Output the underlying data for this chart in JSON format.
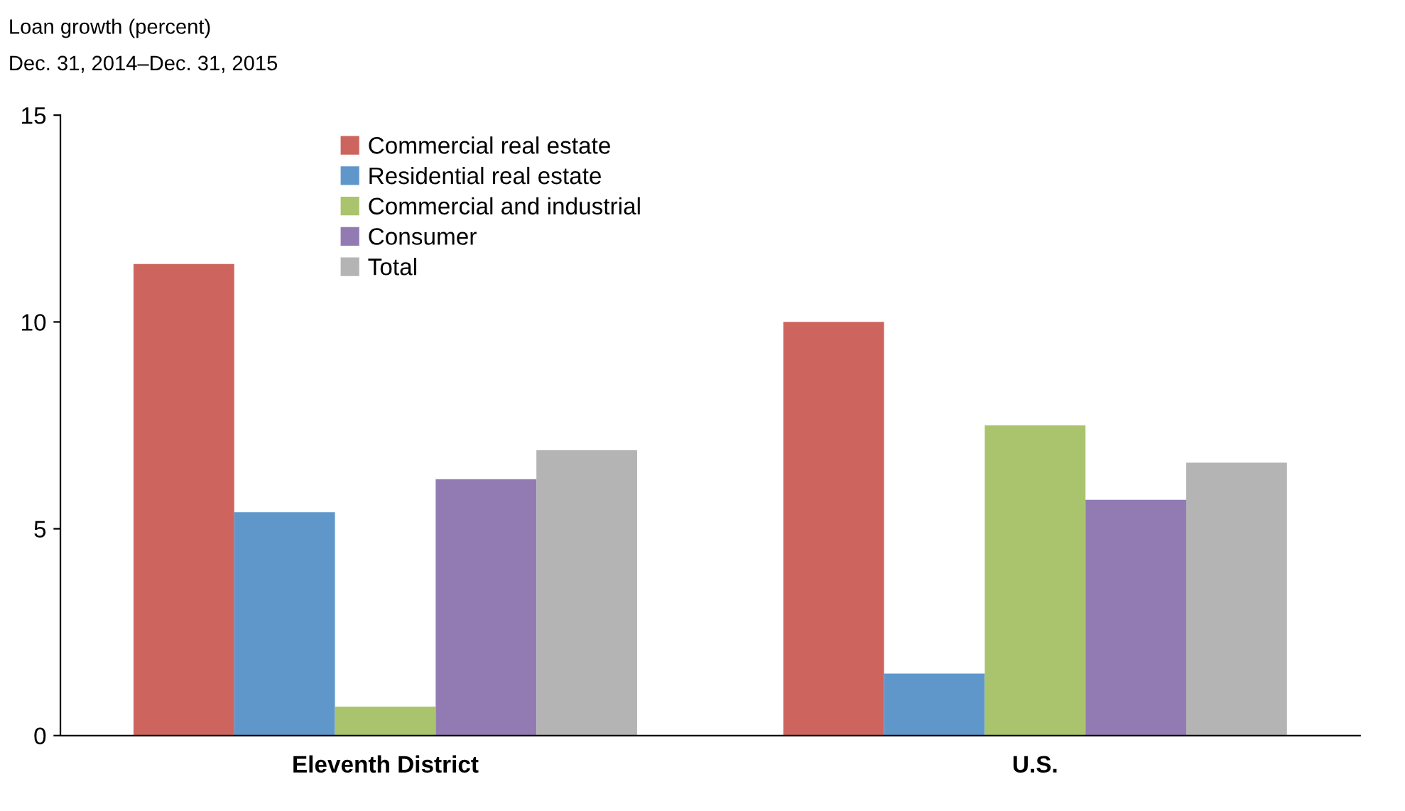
{
  "chart_data": {
    "type": "bar",
    "title": "Loan growth (percent)",
    "subtitle": "Dec. 31, 2014–Dec. 31, 2015",
    "categories": [
      "Eleventh District",
      "U.S."
    ],
    "series": [
      {
        "name": "Commercial real estate",
        "color": "#cd655e",
        "values": [
          11.4,
          10.0
        ]
      },
      {
        "name": "Residential real estate",
        "color": "#6097cb",
        "values": [
          5.4,
          1.5
        ]
      },
      {
        "name": "Commercial and industrial",
        "color": "#a9c46c",
        "values": [
          0.7,
          7.5
        ]
      },
      {
        "name": "Consumer",
        "color": "#927bb2",
        "values": [
          6.2,
          5.7
        ]
      },
      {
        "name": "Total",
        "color": "#b4b4b4",
        "values": [
          6.9,
          6.6
        ]
      }
    ],
    "ylim": [
      0,
      15
    ],
    "yticks": [
      0,
      5,
      10,
      15
    ],
    "grid": false,
    "legend": "top"
  }
}
